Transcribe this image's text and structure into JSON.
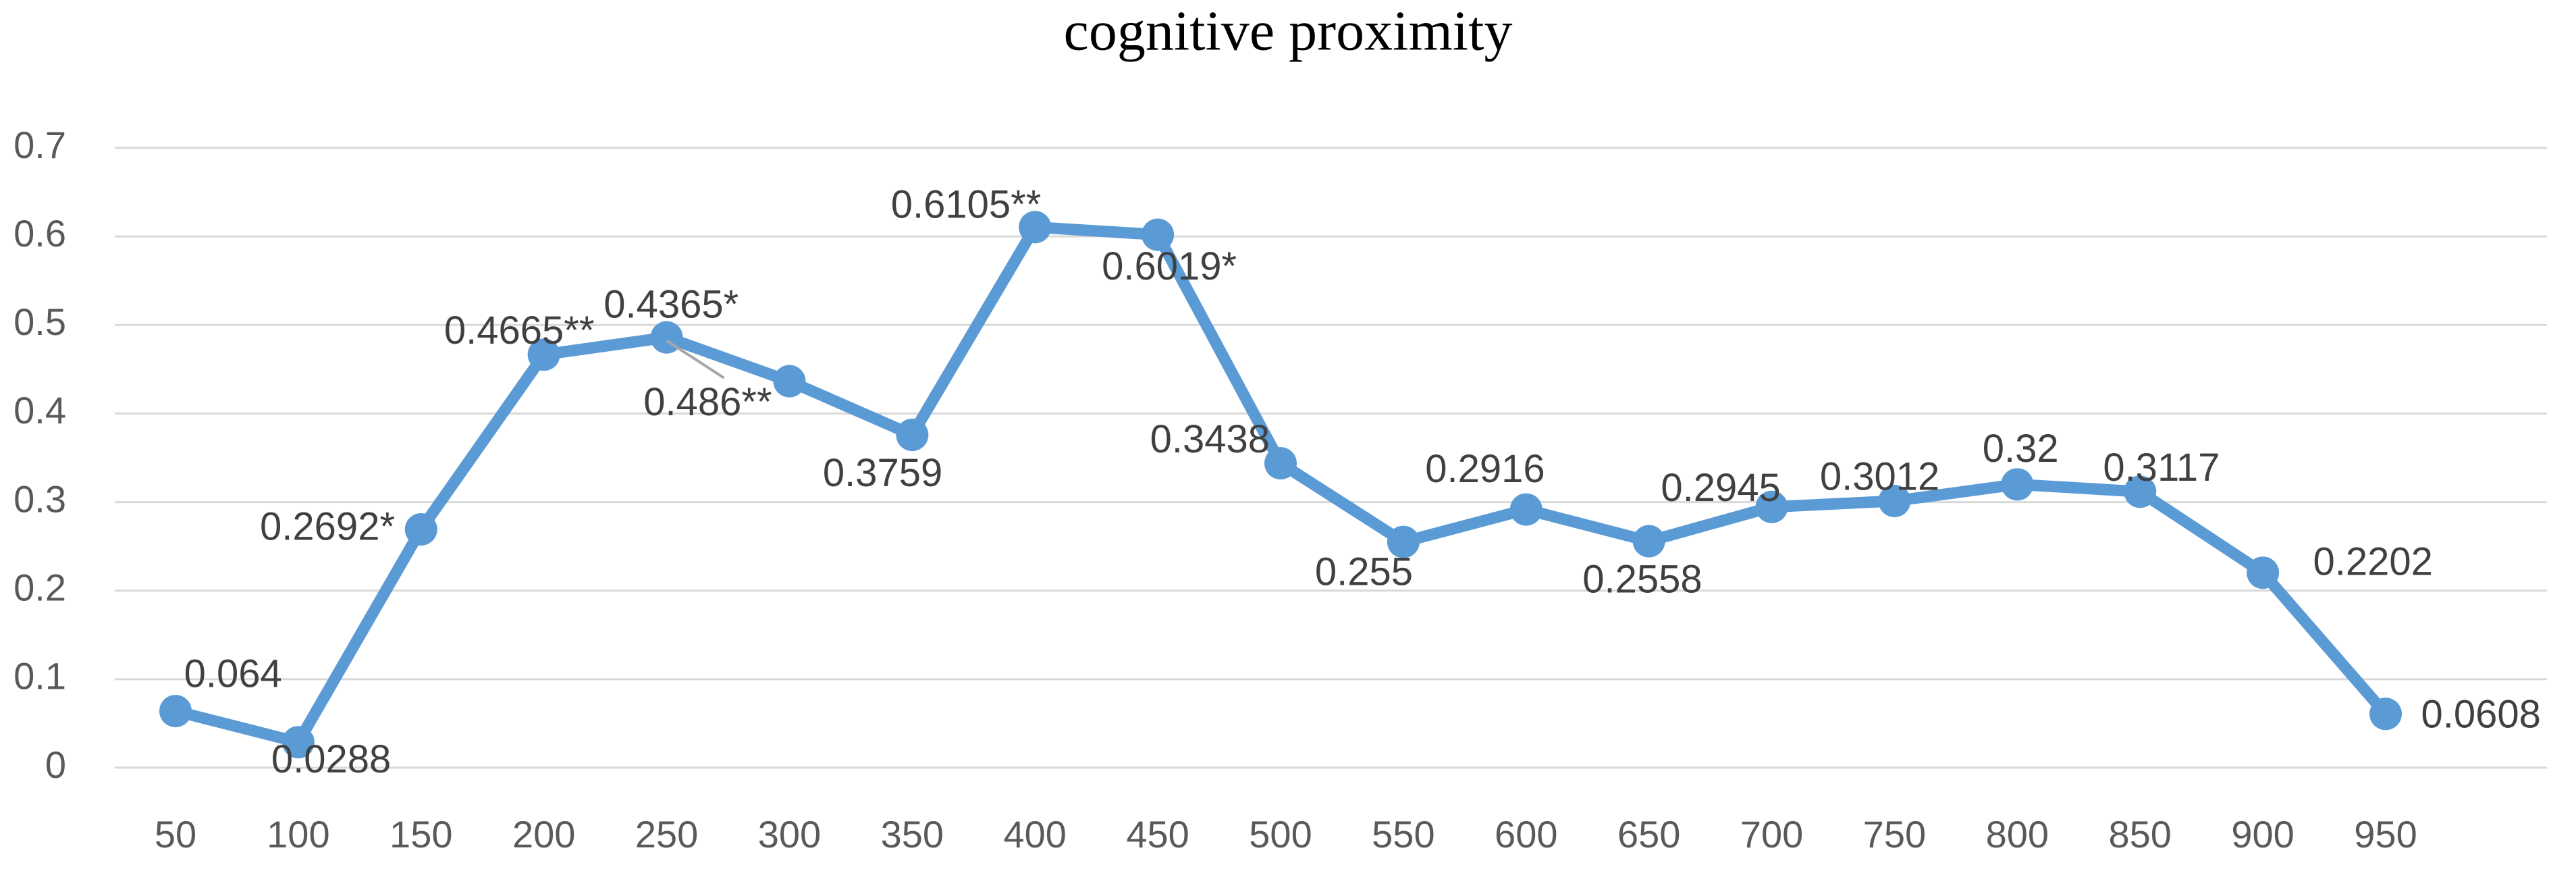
{
  "chart_data": {
    "type": "line",
    "title": "cognitive proximity",
    "categories": [
      "50",
      "100",
      "150",
      "200",
      "250",
      "300",
      "350",
      "400",
      "450",
      "500",
      "550",
      "600",
      "650",
      "700",
      "750",
      "800",
      "850",
      "900",
      "950"
    ],
    "values": [
      0.064,
      0.0288,
      0.2692,
      0.4665,
      0.486,
      0.4365,
      0.3759,
      0.6105,
      0.6019,
      0.3438,
      0.255,
      0.2916,
      0.2558,
      0.2945,
      0.3012,
      0.32,
      0.3117,
      0.2202,
      0.0608
    ],
    "value_labels": [
      "0.064",
      "0.0288",
      "0.2692*",
      "0.4665**",
      "0.486**",
      "0.4365*",
      "0.3759",
      "0.6105**",
      "0.6019*",
      "0.3438",
      "0.255",
      "0.2916",
      "0.2558",
      "0.2945",
      "0.3012",
      "0.32",
      "0.3117",
      "0.2202",
      "0.0608"
    ],
    "color": "#5b9bd5",
    "ylim": [
      0,
      0.7
    ],
    "yticks": [
      0,
      0.1,
      0.2,
      0.3,
      0.4,
      0.5,
      0.6,
      0.7
    ],
    "grid": true
  }
}
